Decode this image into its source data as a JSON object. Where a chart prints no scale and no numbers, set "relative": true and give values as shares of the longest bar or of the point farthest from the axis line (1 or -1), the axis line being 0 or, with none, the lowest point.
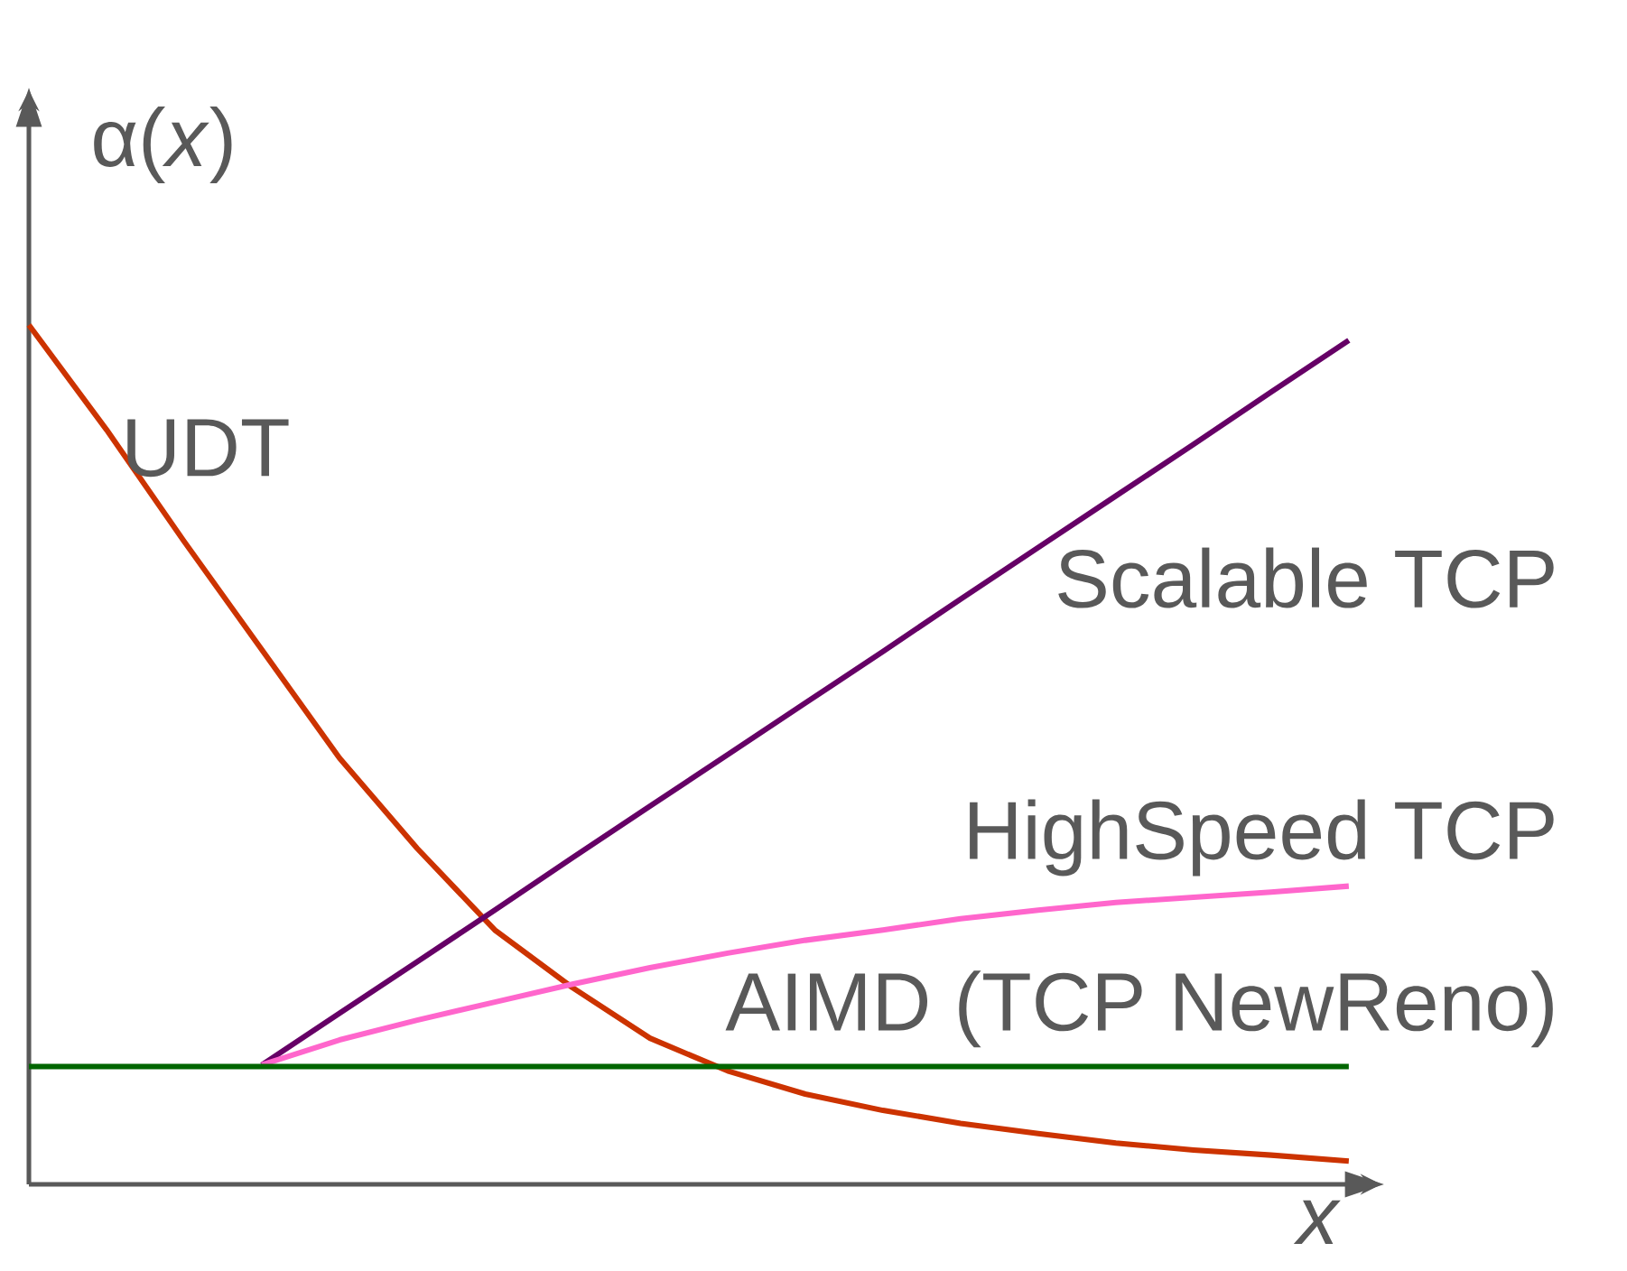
{
  "chart_data": {
    "type": "line",
    "relative": true,
    "xlabel": "x",
    "ylabel": "α(*x*)",
    "categories": [
      null,
      null,
      null,
      null,
      null,
      null,
      null,
      null,
      null,
      null,
      null,
      null,
      null,
      null,
      null,
      null,
      null,
      null
    ],
    "series": [
      {
        "name": "UDT",
        "color": "#cc3300",
        "values": [
          1.0,
          0.878,
          0.748,
          0.622,
          0.496,
          0.391,
          0.296,
          0.229,
          0.17,
          0.132,
          0.105,
          0.086,
          0.071,
          0.059,
          0.048,
          0.04,
          0.034,
          0.027
        ]
      },
      {
        "name": "Scalable TCP",
        "color": "#660066",
        "values": [
          null,
          null,
          null,
          0.139,
          0.199,
          0.259,
          0.319,
          0.38,
          0.44,
          0.5,
          0.56,
          0.62,
          0.681,
          0.741,
          0.801,
          0.861,
          0.922,
          0.982
        ]
      },
      {
        "name": "HighSpeed TCP",
        "color": "#ff66cc",
        "values": [
          null,
          null,
          null,
          0.139,
          0.168,
          0.191,
          0.212,
          0.233,
          0.252,
          0.269,
          0.284,
          0.296,
          0.309,
          0.319,
          0.328,
          0.334,
          0.34,
          0.347
        ]
      },
      {
        "name": "AIMD (TCP NewReno)",
        "color": "#006600",
        "values": [
          0.137,
          0.137,
          0.137,
          0.137,
          0.137,
          0.137,
          0.137,
          0.137,
          0.137,
          0.137,
          0.137,
          0.137,
          0.137,
          0.137,
          0.137,
          0.137,
          0.137,
          0.137
        ]
      }
    ]
  }
}
